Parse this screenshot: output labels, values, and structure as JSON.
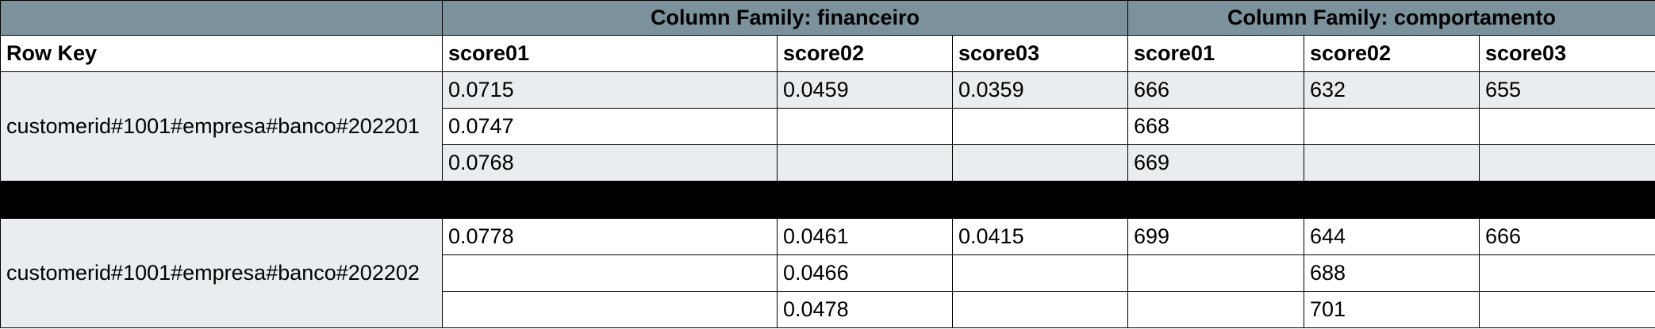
{
  "header": {
    "families": [
      {
        "label": "Column Family: financeiro"
      },
      {
        "label": "Column Family: comportamento"
      }
    ],
    "row_key_label": "Row Key",
    "columns": [
      "score01",
      "score02",
      "score03",
      "score01",
      "score02",
      "score03"
    ]
  },
  "colors": {
    "header_band": "#7b919c",
    "shaded_row": "#e9edf0",
    "separator": "#000000"
  },
  "groups": [
    {
      "row_key": "customerid#1001#empresa#banco#202201",
      "rows": [
        [
          "0.0715",
          "0.0459",
          "0.0359",
          "666",
          "632",
          "655"
        ],
        [
          "0.0747",
          "",
          "",
          "668",
          "",
          ""
        ],
        [
          "0.0768",
          "",
          "",
          "669",
          "",
          ""
        ]
      ]
    },
    {
      "row_key": "customerid#1001#empresa#banco#202202",
      "rows": [
        [
          "0.0778",
          "0.0461",
          "0.0415",
          "699",
          "644",
          "666"
        ],
        [
          "",
          "0.0466",
          "",
          "",
          "688",
          ""
        ],
        [
          "",
          "0.0478",
          "",
          "",
          "701",
          ""
        ]
      ]
    }
  ]
}
